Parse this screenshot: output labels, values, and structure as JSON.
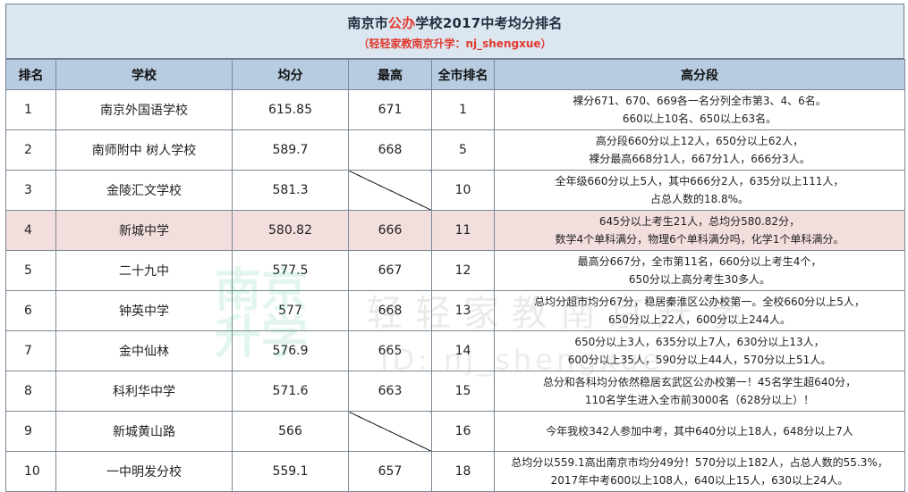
{
  "title": {
    "prefix": "南京市",
    "highlight": "公办",
    "suffix": "学校2017中考均分排名",
    "subtitle": "（轻轻家教南京升学：nj_shengxue）"
  },
  "columns": [
    "排名",
    "学校",
    "均分",
    "最高",
    "全市排名",
    "高分段"
  ],
  "rows": [
    {
      "rank": "1",
      "school": "南京外国语学校",
      "avg": "615.85",
      "max": "671",
      "city_rank": "1",
      "high": [
        "裸分671、670、669各一名分列全市第3、4、6名。",
        "660以上10名、650以上63名。"
      ]
    },
    {
      "rank": "2",
      "school": "南师附中 树人学校",
      "avg": "589.7",
      "max": "668",
      "city_rank": "5",
      "high": [
        "高分段660分以上12人，650分以上62人，",
        "裸分最高668分1人，667分1人，666分3人。"
      ]
    },
    {
      "rank": "3",
      "school": "金陵汇文学校",
      "avg": "581.3",
      "max": "",
      "city_rank": "10",
      "high": [
        "全年级660分以上5人，其中666分2人，635分以上111人，",
        "占总人数的18.8%。"
      ]
    },
    {
      "rank": "4",
      "school": "新城中学",
      "avg": "580.82",
      "max": "666",
      "city_rank": "11",
      "high": [
        "645分以上考生21人，总均分580.82分，",
        "数学4个单科满分，物理6个单科满分吗，化学1个单科满分。"
      ]
    },
    {
      "rank": "5",
      "school": "二十九中",
      "avg": "577.5",
      "max": "667",
      "city_rank": "12",
      "high": [
        "最高分667分，全市第11名，660分以上考生4个，",
        "650分以上高分考生30多人。"
      ]
    },
    {
      "rank": "6",
      "school": "钟英中学",
      "avg": "577",
      "max": "668",
      "city_rank": "13",
      "high": [
        "总均分超市均分67分，稳居秦淮区公办校第一。全校660分以上5人，",
        "650分以上22人，600分以上244人。"
      ]
    },
    {
      "rank": "7",
      "school": "金中仙林",
      "avg": "576.9",
      "max": "665",
      "city_rank": "14",
      "high": [
        "650分以上3人，635分以上7人，630分以上13人，",
        "600分以上35人，590分以上44人，570分以上51人。"
      ]
    },
    {
      "rank": "8",
      "school": "科利华中学",
      "avg": "571.6",
      "max": "663",
      "city_rank": "15",
      "high": [
        "总分和各科均分依然稳居玄武区公办校第一！45名学生超640分，",
        "110名学生进入全市前3000名（628分以上）！"
      ]
    },
    {
      "rank": "9",
      "school": "新城黄山路",
      "avg": "566",
      "max": "",
      "city_rank": "16",
      "high": [
        "今年我校342人参加中考，其中640分以上18人，648分以上7人"
      ]
    },
    {
      "rank": "10",
      "school": "一中明发分校",
      "avg": "559.1",
      "max": "657",
      "city_rank": "18",
      "high": [
        "总均分以559.1高出南京市均分49分！570分以上182人，占总人数的55.3%，",
        "2017年中考600以上108人，640以上15人，630以上24人。"
      ]
    }
  ],
  "watermark": {
    "logo": "南京升学",
    "text": "轻轻家教南京升学",
    "id": "ID: nj_shengxue"
  }
}
